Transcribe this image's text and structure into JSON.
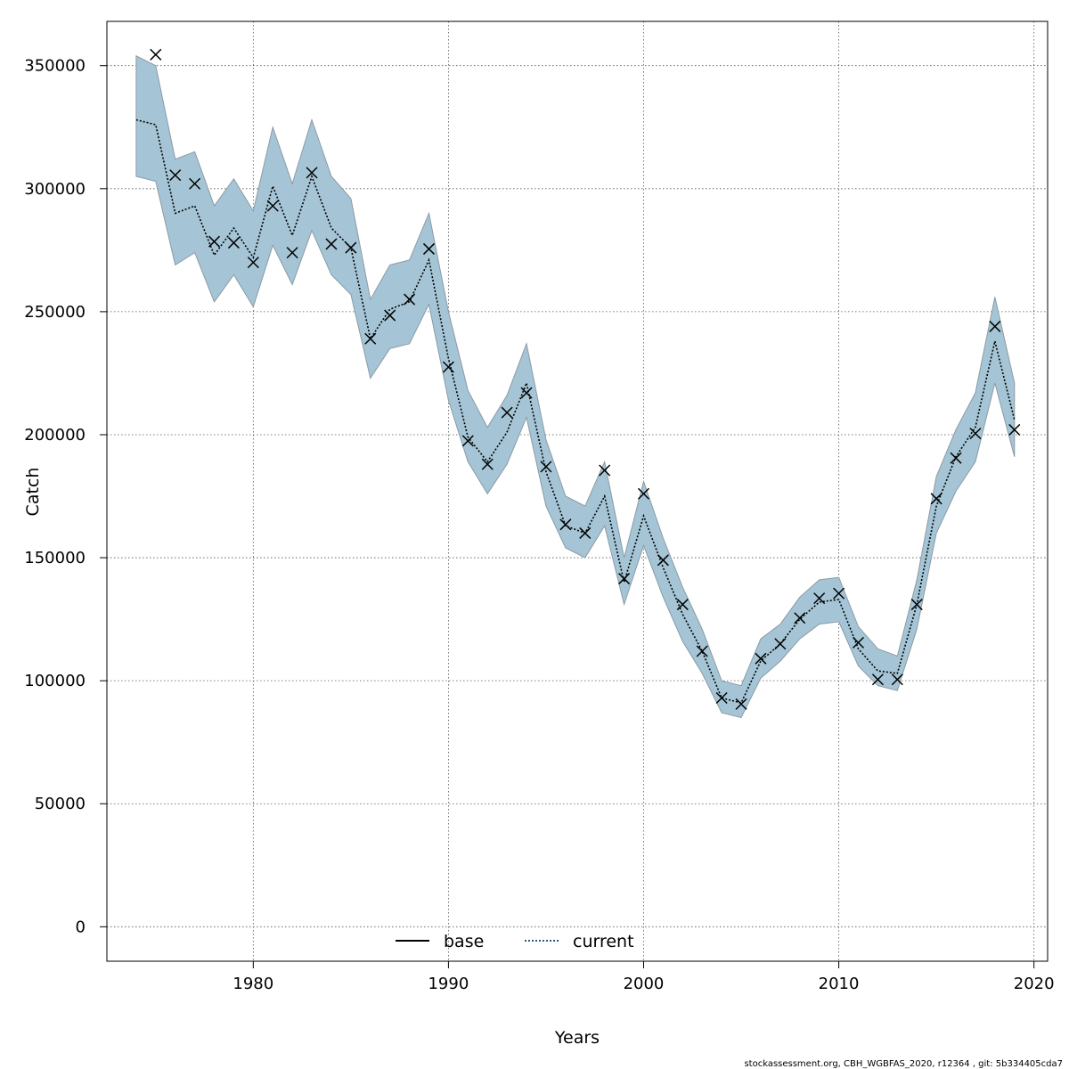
{
  "chart_data": {
    "type": "line",
    "title": "",
    "xlabel": "Years",
    "ylabel": "Catch",
    "xlim": [
      1972.5,
      2020.7
    ],
    "ylim": [
      -14000,
      368000
    ],
    "x_ticks": [
      1980,
      1990,
      2000,
      2010,
      2020
    ],
    "x_tick_labels": [
      "1980",
      "1990",
      "2000",
      "2010",
      "2020"
    ],
    "y_ticks": [
      0,
      50000,
      100000,
      150000,
      200000,
      250000,
      300000,
      350000
    ],
    "y_tick_labels": [
      "0",
      "50000",
      "100000",
      "150000",
      "200000",
      "250000",
      "300000",
      "350000"
    ],
    "grid": true,
    "legend_position": "bottom-center",
    "legend": [
      {
        "label": "base",
        "style": "solid",
        "color": "#000000"
      },
      {
        "label": "current",
        "style": "dotted",
        "color": "#000000"
      }
    ],
    "colors": {
      "band_fill": "#a5c5d6",
      "band_edge": "#8a9aa4",
      "line": "#000000",
      "points": "#000000",
      "grid": "#555555"
    },
    "x": [
      1974,
      1975,
      1976,
      1977,
      1978,
      1979,
      1980,
      1981,
      1982,
      1983,
      1984,
      1985,
      1986,
      1987,
      1988,
      1989,
      1990,
      1991,
      1992,
      1993,
      1994,
      1995,
      1996,
      1997,
      1998,
      1999,
      2000,
      2001,
      2002,
      2003,
      2004,
      2005,
      2006,
      2007,
      2008,
      2009,
      2010,
      2011,
      2012,
      2013,
      2014,
      2015,
      2016,
      2017,
      2018,
      2019
    ],
    "series": [
      {
        "name": "current",
        "kind": "estimate",
        "values": [
          328000,
          326000,
          290000,
          293000,
          273000,
          284000,
          272000,
          301000,
          281000,
          305000,
          284000,
          276000,
          239000,
          251000,
          254000,
          271000,
          231000,
          199000,
          189000,
          201000,
          221000,
          185000,
          163000,
          160000,
          175000,
          140000,
          167000,
          146000,
          127000,
          112000,
          93000,
          91000,
          108000,
          115000,
          125000,
          132000,
          133000,
          113000,
          104000,
          103000,
          131000,
          171000,
          191000,
          203000,
          238000,
          206000
        ]
      },
      {
        "name": "",
        "kind": "confidence_band_lower",
        "values": [
          305000,
          303000,
          269000,
          274000,
          254000,
          265000,
          252000,
          277000,
          261000,
          283000,
          265000,
          257000,
          223000,
          235000,
          237000,
          253000,
          214000,
          189000,
          176000,
          188000,
          207000,
          171000,
          154000,
          150000,
          163000,
          131000,
          155000,
          134000,
          116000,
          103000,
          87000,
          85000,
          101000,
          108000,
          117000,
          123000,
          124000,
          106000,
          98000,
          96000,
          121000,
          160000,
          177000,
          189000,
          221000,
          191000
        ]
      },
      {
        "name": "",
        "kind": "confidence_band_upper",
        "values": [
          354000,
          350000,
          312000,
          315000,
          293000,
          304000,
          291000,
          325000,
          302000,
          328000,
          305000,
          296000,
          255000,
          269000,
          271000,
          290000,
          250000,
          218000,
          203000,
          216000,
          237000,
          198000,
          175000,
          171000,
          189000,
          150000,
          181000,
          158000,
          138000,
          121000,
          100000,
          98000,
          117000,
          123000,
          134000,
          141000,
          142000,
          122000,
          113000,
          110000,
          141000,
          183000,
          202000,
          217000,
          256000,
          221000
        ]
      },
      {
        "name": "",
        "kind": "observed_catch",
        "values": [
          null,
          354500,
          305500,
          302000,
          278500,
          278000,
          270000,
          293000,
          274000,
          306500,
          277500,
          276000,
          239000,
          248500,
          255000,
          275500,
          227500,
          197500,
          188000,
          209000,
          217000,
          187000,
          163500,
          160000,
          185500,
          141500,
          176000,
          149000,
          131000,
          112000,
          93000,
          90500,
          109000,
          115000,
          125500,
          133500,
          135500,
          115500,
          100500,
          100500,
          131000,
          174000,
          190500,
          200500,
          244000,
          202000
        ]
      }
    ],
    "footer_text": "stockassessment.org, CBH_WGBFAS_2020, r12364 , git: 5b334405cda7"
  }
}
